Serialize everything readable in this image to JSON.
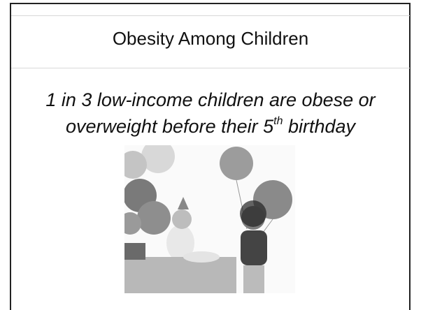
{
  "slide": {
    "title": "Obesity Among Children",
    "body": {
      "line1": "1 in 3 low-income children are obese or",
      "line2": "overweight before their 5",
      "superscript": "th",
      "line2_end": " birthday"
    }
  }
}
